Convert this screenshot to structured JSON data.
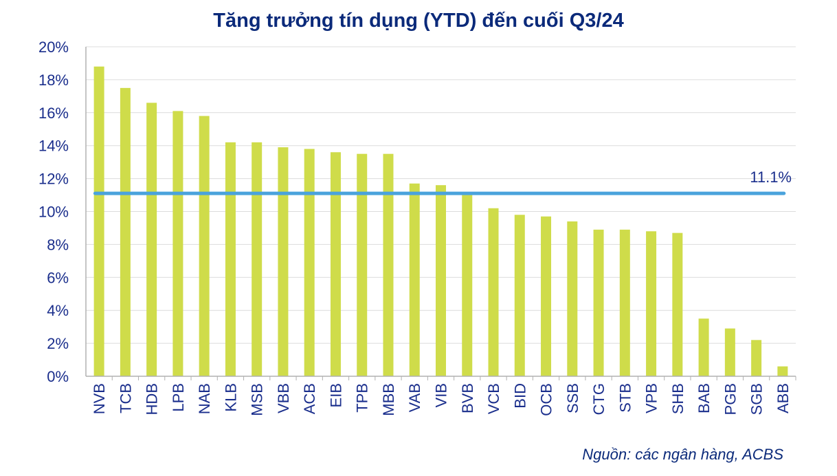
{
  "chart_data": {
    "type": "bar",
    "title": "Tăng trưởng tín dụng (YTD) đến cuối Q3/24",
    "categories": [
      "NVB",
      "TCB",
      "HDB",
      "LPB",
      "NAB",
      "KLB",
      "MSB",
      "VBB",
      "ACB",
      "EIB",
      "TPB",
      "MBB",
      "VAB",
      "VIB",
      "BVB",
      "VCB",
      "BID",
      "OCB",
      "SSB",
      "CTG",
      "STB",
      "VPB",
      "SHB",
      "BAB",
      "PGB",
      "SGB",
      "ABB"
    ],
    "values": [
      18.8,
      17.5,
      16.6,
      16.1,
      15.8,
      14.2,
      14.2,
      13.9,
      13.8,
      13.6,
      13.5,
      13.5,
      11.7,
      11.6,
      11.0,
      10.2,
      9.8,
      9.7,
      9.4,
      8.9,
      8.9,
      8.8,
      8.7,
      3.5,
      2.9,
      2.2,
      0.6
    ],
    "ylim": [
      0,
      20
    ],
    "yticks": [
      "0%",
      "2%",
      "4%",
      "6%",
      "8%",
      "10%",
      "12%",
      "14%",
      "16%",
      "18%",
      "20%"
    ],
    "reference_line": {
      "value": 11.1,
      "label": "11.1%"
    },
    "grid": true,
    "bar_color": "#cfdc4a",
    "line_color": "#4aa3dc"
  },
  "source_note": "Nguồn:  các ngân hàng, ACBS"
}
